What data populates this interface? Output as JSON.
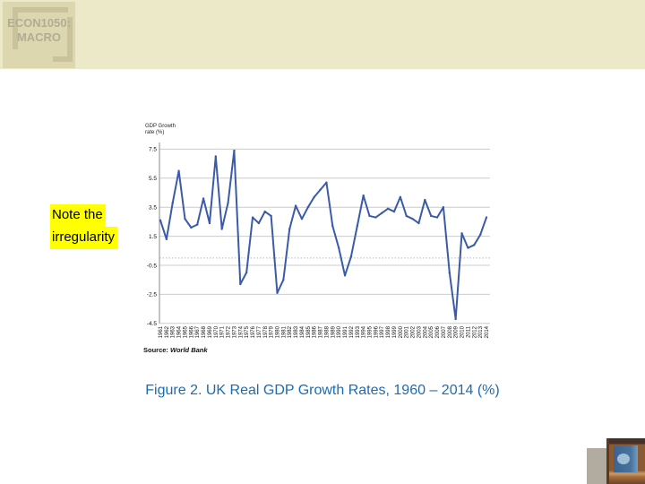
{
  "slide": {
    "header": {
      "course_line1": "ECON1050:",
      "course_line2": "MACRO",
      "band_color": "#ece9c8",
      "box_color": "#ddd7b0",
      "bracket_color": "#c9c29b"
    },
    "note": {
      "line1": "Note the",
      "line2": "irregularity",
      "highlight_color": "#ffff00",
      "text_color": "#000000"
    },
    "caption": "Figure 2. UK Real GDP Growth Rates, 1960 – 2014 (%)",
    "caption_color": "#1b6cb5"
  },
  "chart_data": {
    "type": "line",
    "title": "Figure 2. UK Real GDP Growth Rates, 1960 – 2014 (%)",
    "ylabel_line1": "GDP Growth",
    "ylabel_line2": "rate (%)",
    "xlabel": "",
    "source_label": "Source:",
    "source_value": "World Bank",
    "legend": "none",
    "grid": true,
    "zero_line": "dotted",
    "line_color": "#3b5ba9",
    "grid_color": "#cccccc",
    "ylim": [
      -4.5,
      7.5
    ],
    "yticks": [
      7.5,
      5.5,
      3.5,
      1.5,
      -0.5,
      -2.5,
      -4.5
    ],
    "ytick_labels": [
      "7.5",
      "5.5",
      "3.5",
      "1.5",
      "-0.5",
      "-2.5",
      "-4.5"
    ],
    "x": [
      1961,
      1962,
      1963,
      1964,
      1965,
      1966,
      1967,
      1968,
      1969,
      1970,
      1971,
      1972,
      1973,
      1974,
      1975,
      1976,
      1977,
      1978,
      1979,
      1980,
      1981,
      1982,
      1983,
      1984,
      1985,
      1986,
      1987,
      1988,
      1989,
      1990,
      1991,
      1992,
      1993,
      1994,
      1995,
      1996,
      1997,
      1998,
      1999,
      2000,
      2001,
      2002,
      2003,
      2004,
      2005,
      2006,
      2007,
      2008,
      2009,
      2010,
      2011,
      2012,
      2013,
      2014
    ],
    "values": [
      2.6,
      1.3,
      3.8,
      6.0,
      2.7,
      2.1,
      2.3,
      4.1,
      2.4,
      7.0,
      2.0,
      3.8,
      7.4,
      -1.8,
      -1.0,
      2.8,
      2.4,
      3.2,
      2.9,
      -2.4,
      -1.5,
      2.0,
      3.6,
      2.7,
      3.5,
      4.2,
      4.7,
      5.2,
      2.2,
      0.7,
      -1.2,
      0.1,
      2.2,
      4.3,
      2.9,
      2.8,
      3.1,
      3.4,
      3.2,
      4.2,
      2.9,
      2.7,
      2.4,
      4.0,
      2.9,
      2.8,
      3.5,
      -1.0,
      -4.2,
      1.7,
      0.7,
      0.9,
      1.6,
      2.8
    ]
  }
}
